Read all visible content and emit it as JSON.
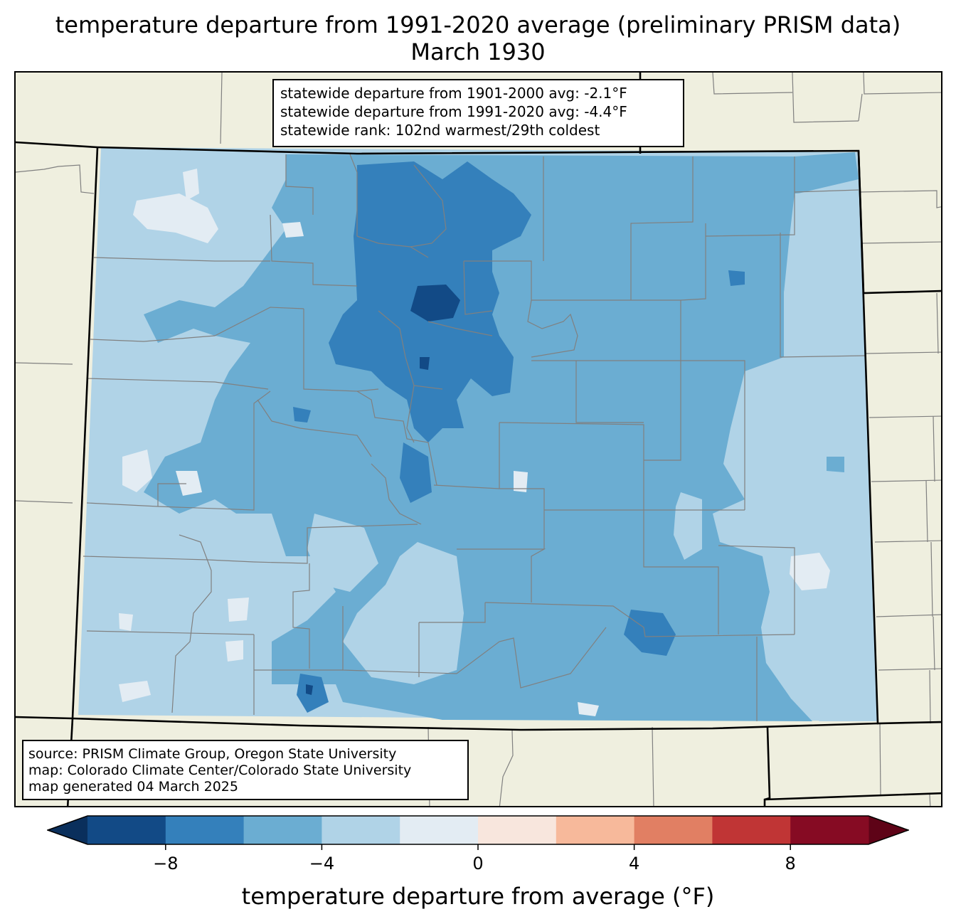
{
  "title": {
    "line1": "temperature departure from 1991-2020 average (preliminary PRISM data)",
    "line2": "March 1930"
  },
  "stats_box": {
    "lines": [
      "statewide departure from 1901-2000 avg: -2.1°F",
      "statewide departure from 1991-2020 avg: -4.4°F",
      "statewide rank: 102nd warmest/29th coldest"
    ]
  },
  "source_box": {
    "lines": [
      "source: PRISM Climate Group, Oregon State University",
      "map: Colorado Climate Center/Colorado State University",
      "map generated 04 March 2025"
    ]
  },
  "colorbar": {
    "label": "temperature departure from average (°F)",
    "ticks": [
      -8,
      -4,
      0,
      4,
      8
    ],
    "tick_labels": [
      "−8",
      "−4",
      "0",
      "4",
      "8"
    ],
    "boundaries": [
      -10,
      -8,
      -6,
      -4,
      -2,
      0,
      2,
      4,
      6,
      8,
      10
    ],
    "colors": [
      "#124a86",
      "#3480bb",
      "#6badd2",
      "#b0d3e7",
      "#e3ecf3",
      "#f8e6dd",
      "#f7b99b",
      "#e17f63",
      "#c03535",
      "#860b23"
    ],
    "under_color": "#0a2f5c",
    "over_color": "#5e0317"
  },
  "map": {
    "background_color": "#efefdf",
    "border_color": "#000000",
    "county_line_color": "#808080"
  }
}
